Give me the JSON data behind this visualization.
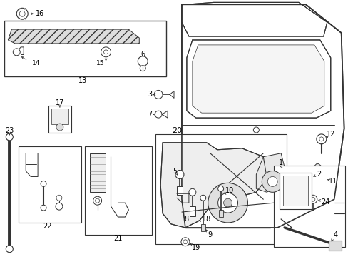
{
  "bg_color": "#ffffff",
  "fig_width": 4.89,
  "fig_height": 3.6,
  "dpi": 100,
  "ec": "#333333",
  "lw": 0.8
}
